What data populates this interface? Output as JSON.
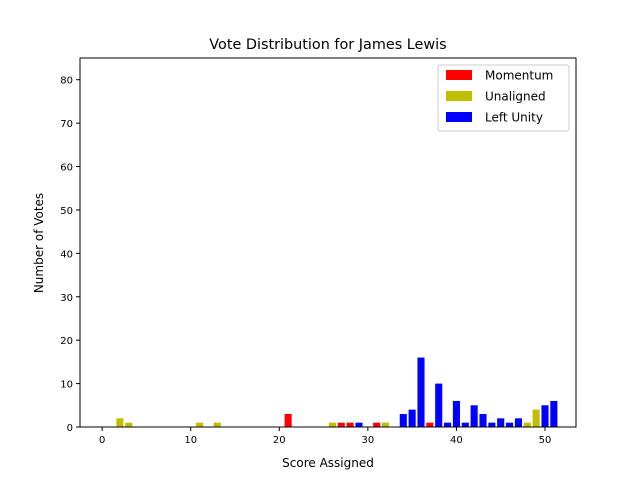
{
  "chart_data": {
    "type": "bar",
    "title": "Vote Distribution for James Lewis",
    "xlabel": "Score Assigned",
    "ylabel": "Number of Votes",
    "xlim": [
      -2.5,
      53.5
    ],
    "ylim": [
      0,
      85
    ],
    "xticks": [
      0,
      10,
      20,
      30,
      40,
      50
    ],
    "yticks": [
      0,
      10,
      20,
      30,
      40,
      50,
      60,
      70,
      80
    ],
    "grid": false,
    "legend_position": "top-right",
    "bar_width": 0.8,
    "series": [
      {
        "name": "Momentum",
        "color": "#ff0000",
        "points": [
          {
            "x": 21,
            "y": 3
          },
          {
            "x": 27,
            "y": 1
          },
          {
            "x": 28,
            "y": 1
          },
          {
            "x": 31,
            "y": 1
          },
          {
            "x": 37,
            "y": 1
          }
        ]
      },
      {
        "name": "Unaligned",
        "color": "#bfbf00",
        "points": [
          {
            "x": 2,
            "y": 2
          },
          {
            "x": 3,
            "y": 1
          },
          {
            "x": 11,
            "y": 1
          },
          {
            "x": 13,
            "y": 1
          },
          {
            "x": 26,
            "y": 1
          },
          {
            "x": 32,
            "y": 1
          },
          {
            "x": 48,
            "y": 1
          },
          {
            "x": 49,
            "y": 4
          }
        ]
      },
      {
        "name": "Left Unity",
        "color": "#0000ff",
        "points": [
          {
            "x": 29,
            "y": 1
          },
          {
            "x": 34,
            "y": 3
          },
          {
            "x": 35,
            "y": 4
          },
          {
            "x": 36,
            "y": 16
          },
          {
            "x": 38,
            "y": 10
          },
          {
            "x": 39,
            "y": 1
          },
          {
            "x": 40,
            "y": 6
          },
          {
            "x": 41,
            "y": 1
          },
          {
            "x": 42,
            "y": 5
          },
          {
            "x": 43,
            "y": 3
          },
          {
            "x": 44,
            "y": 1
          },
          {
            "x": 45,
            "y": 2
          },
          {
            "x": 46,
            "y": 1
          },
          {
            "x": 47,
            "y": 2
          },
          {
            "x": 50,
            "y": 5
          },
          {
            "x": 51,
            "y": 6
          }
        ]
      }
    ]
  }
}
